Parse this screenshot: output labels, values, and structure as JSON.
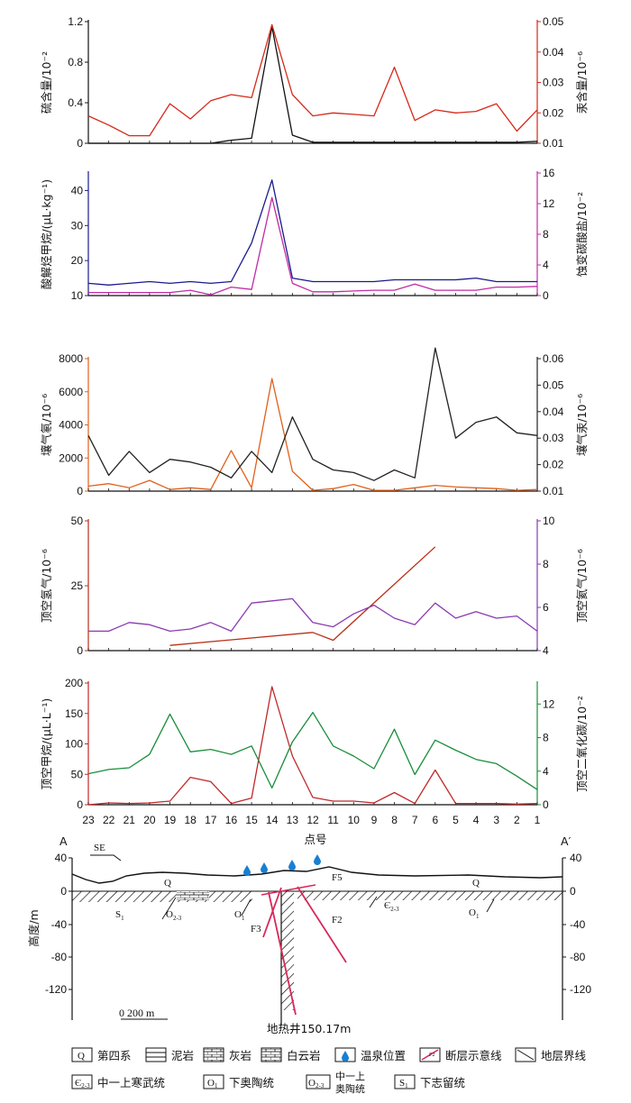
{
  "x_points": [
    23,
    22,
    21,
    20,
    19,
    18,
    17,
    16,
    15,
    14,
    13,
    12,
    11,
    10,
    9,
    8,
    7,
    6,
    5,
    4,
    3,
    2,
    1
  ],
  "xlabel": "点号",
  "charts": [
    {
      "id": "c1",
      "left": {
        "label": "硫含量/10⁻²",
        "ticks": [
          0,
          0.4,
          0.8,
          1.2
        ],
        "tick_labels": [
          "0",
          "0.4",
          "0.8",
          "1.2"
        ],
        "min": 0,
        "max": 1.2,
        "color": "#111111"
      },
      "right": {
        "label": "汞含量/10⁻⁶",
        "ticks": [
          0.01,
          0.02,
          0.03,
          0.04,
          0.05
        ],
        "tick_labels": [
          "0.01",
          "0.02",
          "0.03",
          "0.04",
          "0.05"
        ],
        "min": 0.01,
        "max": 0.05,
        "color": "#d62818"
      },
      "series": [
        {
          "axis": "left",
          "color": "#111111",
          "values": [
            0,
            0,
            0,
            0,
            0,
            0,
            0,
            0.03,
            0.05,
            1.15,
            0.08,
            0.01,
            0.01,
            0.01,
            0.01,
            0.01,
            0.01,
            0.01,
            0.01,
            0.01,
            0.01,
            0.01,
            0.02
          ]
        },
        {
          "axis": "right",
          "color": "#d62818",
          "values": [
            0.019,
            0.016,
            0.0125,
            0.0125,
            0.023,
            0.018,
            0.024,
            0.026,
            0.025,
            0.049,
            0.026,
            0.019,
            0.02,
            0.0195,
            0.019,
            0.035,
            0.0175,
            0.021,
            0.02,
            0.0205,
            0.023,
            0.014,
            0.021
          ]
        }
      ]
    },
    {
      "id": "c2",
      "left": {
        "label": "酸解烃甲烷/(μL·kg⁻¹)",
        "ticks": [
          10,
          20,
          30,
          40
        ],
        "tick_labels": [
          "10",
          "20",
          "30",
          "40"
        ],
        "min": 10,
        "max": 45,
        "color": "#1a1a8c"
      },
      "right": {
        "label": "蚀变碳酸盐/10⁻²",
        "ticks": [
          0,
          4,
          8,
          12,
          16
        ],
        "tick_labels": [
          "0",
          "4",
          "8",
          "12",
          "16"
        ],
        "min": 0,
        "max": 16,
        "color": "#c22aa8"
      },
      "series": [
        {
          "axis": "left",
          "color": "#1a1a8c",
          "values": [
            13.5,
            13,
            13.5,
            14,
            13.5,
            14,
            13.5,
            14,
            25,
            43,
            15,
            14,
            14,
            14,
            14,
            14.5,
            14.5,
            14.5,
            14.5,
            15,
            14,
            14,
            14
          ]
        },
        {
          "axis": "right",
          "color": "#c22aa8",
          "values": [
            0.4,
            0.4,
            0.4,
            0.4,
            0.4,
            0.7,
            0.1,
            1.1,
            0.8,
            12.8,
            1.6,
            0.5,
            0.5,
            0.6,
            0.7,
            0.7,
            1.5,
            0.7,
            0.7,
            0.7,
            1.1,
            1.1,
            1.2
          ]
        }
      ]
    },
    {
      "id": "c3",
      "left": {
        "label": "壤气氡/10⁻⁶",
        "ticks": [
          0,
          2000,
          4000,
          6000,
          8000
        ],
        "tick_labels": [
          "0",
          "2000",
          "4000",
          "6000",
          "8000"
        ],
        "min": 0,
        "max": 8000,
        "color": "#e0601a"
      },
      "right": {
        "label": "壤气汞/10⁻⁶",
        "ticks": [
          0.01,
          0.02,
          0.03,
          0.04,
          0.05,
          0.06
        ],
        "tick_labels": [
          "0.01",
          "0.02",
          "0.03",
          "0.04",
          "0.05",
          "0.06"
        ],
        "min": 0.01,
        "max": 0.06,
        "color": "#222222"
      },
      "series": [
        {
          "axis": "left",
          "color": "#e0601a",
          "values": [
            300,
            450,
            200,
            650,
            100,
            200,
            100,
            2450,
            200,
            6800,
            1200,
            50,
            150,
            400,
            50,
            50,
            200,
            350,
            250,
            200,
            150,
            50,
            100
          ]
        },
        {
          "axis": "right",
          "color": "#222222",
          "values": [
            0.031,
            0.016,
            0.025,
            0.017,
            0.022,
            0.021,
            0.019,
            0.015,
            0.025,
            0.017,
            0.038,
            0.022,
            0.018,
            0.017,
            0.014,
            0.018,
            0.015,
            0.064,
            0.03,
            0.036,
            0.038,
            0.032,
            0.031
          ]
        }
      ]
    },
    {
      "id": "c4",
      "left": {
        "label": "顶空氢气/10⁻⁶",
        "ticks": [
          0,
          25,
          50
        ],
        "tick_labels": [
          "0",
          "25",
          "50"
        ],
        "min": 0,
        "max": 50,
        "color": "#b83018"
      },
      "right": {
        "label": "顶空氦气/10⁻⁶",
        "ticks": [
          4,
          6,
          8,
          10
        ],
        "tick_labels": [
          "4",
          "6",
          "8",
          "10"
        ],
        "min": 4,
        "max": 10,
        "color": "#8a3ab0"
      },
      "series": [
        {
          "axis": "left",
          "color": "#b83018",
          "xs": [
            19,
            12,
            11,
            6
          ],
          "values": [
            2,
            7,
            4,
            40
          ]
        },
        {
          "axis": "right",
          "color": "#8a3ab0",
          "values": [
            4.9,
            4.9,
            5.3,
            5.2,
            4.9,
            5,
            5.3,
            4.9,
            6.2,
            6.3,
            6.4,
            5.3,
            5.1,
            5.7,
            6.1,
            5.5,
            5.2,
            6.2,
            5.5,
            5.8,
            5.5,
            5.6,
            4.9
          ]
        }
      ]
    },
    {
      "id": "c5",
      "left": {
        "label": "顶空甲烷/(μL·L⁻¹)",
        "ticks": [
          0,
          50,
          100,
          150,
          200
        ],
        "tick_labels": [
          "0",
          "50",
          "100",
          "150",
          "200"
        ],
        "min": 0,
        "max": 200,
        "color": "#c02828"
      },
      "right": {
        "label": "顶空二氧化碳/10⁻²",
        "ticks": [
          0,
          4,
          8,
          12
        ],
        "tick_labels": [
          "0",
          "4",
          "8",
          "12"
        ],
        "min": 0,
        "max": 14.5,
        "color": "#1a8c3a"
      },
      "series": [
        {
          "axis": "left",
          "color": "#c02828",
          "values": [
            0,
            3,
            2,
            3,
            6,
            45,
            38,
            2,
            11,
            194,
            80,
            12,
            6,
            6,
            3,
            20,
            2,
            57,
            2,
            2,
            2,
            1,
            2
          ]
        },
        {
          "axis": "right",
          "color": "#1a8c3a",
          "values": [
            3.7,
            4.2,
            4.4,
            6,
            10.8,
            6.3,
            6.6,
            6,
            7,
            2,
            7.5,
            11,
            7,
            5.8,
            4.3,
            9,
            3.6,
            7.7,
            6.5,
            5.4,
            4.9,
            3.4,
            1.8
          ]
        }
      ]
    }
  ],
  "section": {
    "A": "A",
    "A_prime": "A′",
    "direction": "SE",
    "ylabel": "高度/m",
    "left_ticks": [
      "40",
      "0",
      "-40",
      "-80",
      "-120"
    ],
    "right_ticks": [
      "40",
      "0",
      "-40",
      "-80",
      "-120"
    ],
    "scale_label": "0  200 m",
    "well_label": "地热井150.17m",
    "formations": {
      "Q1": "Q",
      "Q2": "Q",
      "S1": "S",
      "S1_sub": "1",
      "O23": "O",
      "O23_sub": "2-3",
      "O1a": "O",
      "O1a_sub": "1",
      "C23": "Є",
      "C23_sub": "2-3",
      "O1b": "O",
      "O1b_sub": "1"
    },
    "faults": {
      "F3": "F3",
      "F5": "F5",
      "F2": "F2"
    }
  },
  "legend": {
    "row1": [
      {
        "symbol": "Q",
        "label": "第四系"
      },
      {
        "symbol": "mudstone",
        "label": "泥岩"
      },
      {
        "symbol": "limestone",
        "label": "灰岩"
      },
      {
        "symbol": "dolomite",
        "label": "白云岩"
      },
      {
        "symbol": "spring",
        "label": "温泉位置"
      },
      {
        "symbol": "F2",
        "label": "断层示意线"
      },
      {
        "symbol": "boundary",
        "label": "地层界线"
      }
    ],
    "row2": [
      {
        "symbol": "Є",
        "sub": "2-3",
        "label": "中一上寒武统"
      },
      {
        "symbol": "O",
        "sub": "1",
        "label": "下奥陶统"
      },
      {
        "symbol": "O",
        "sub": "2-3",
        "label1": "中一上",
        "label2": "奥陶统"
      },
      {
        "symbol": "S",
        "sub": "1",
        "label": "下志留统"
      }
    ]
  },
  "colors": {
    "fault": "#d8285a",
    "spring": "#1a7fd0",
    "axis": "#111111"
  }
}
